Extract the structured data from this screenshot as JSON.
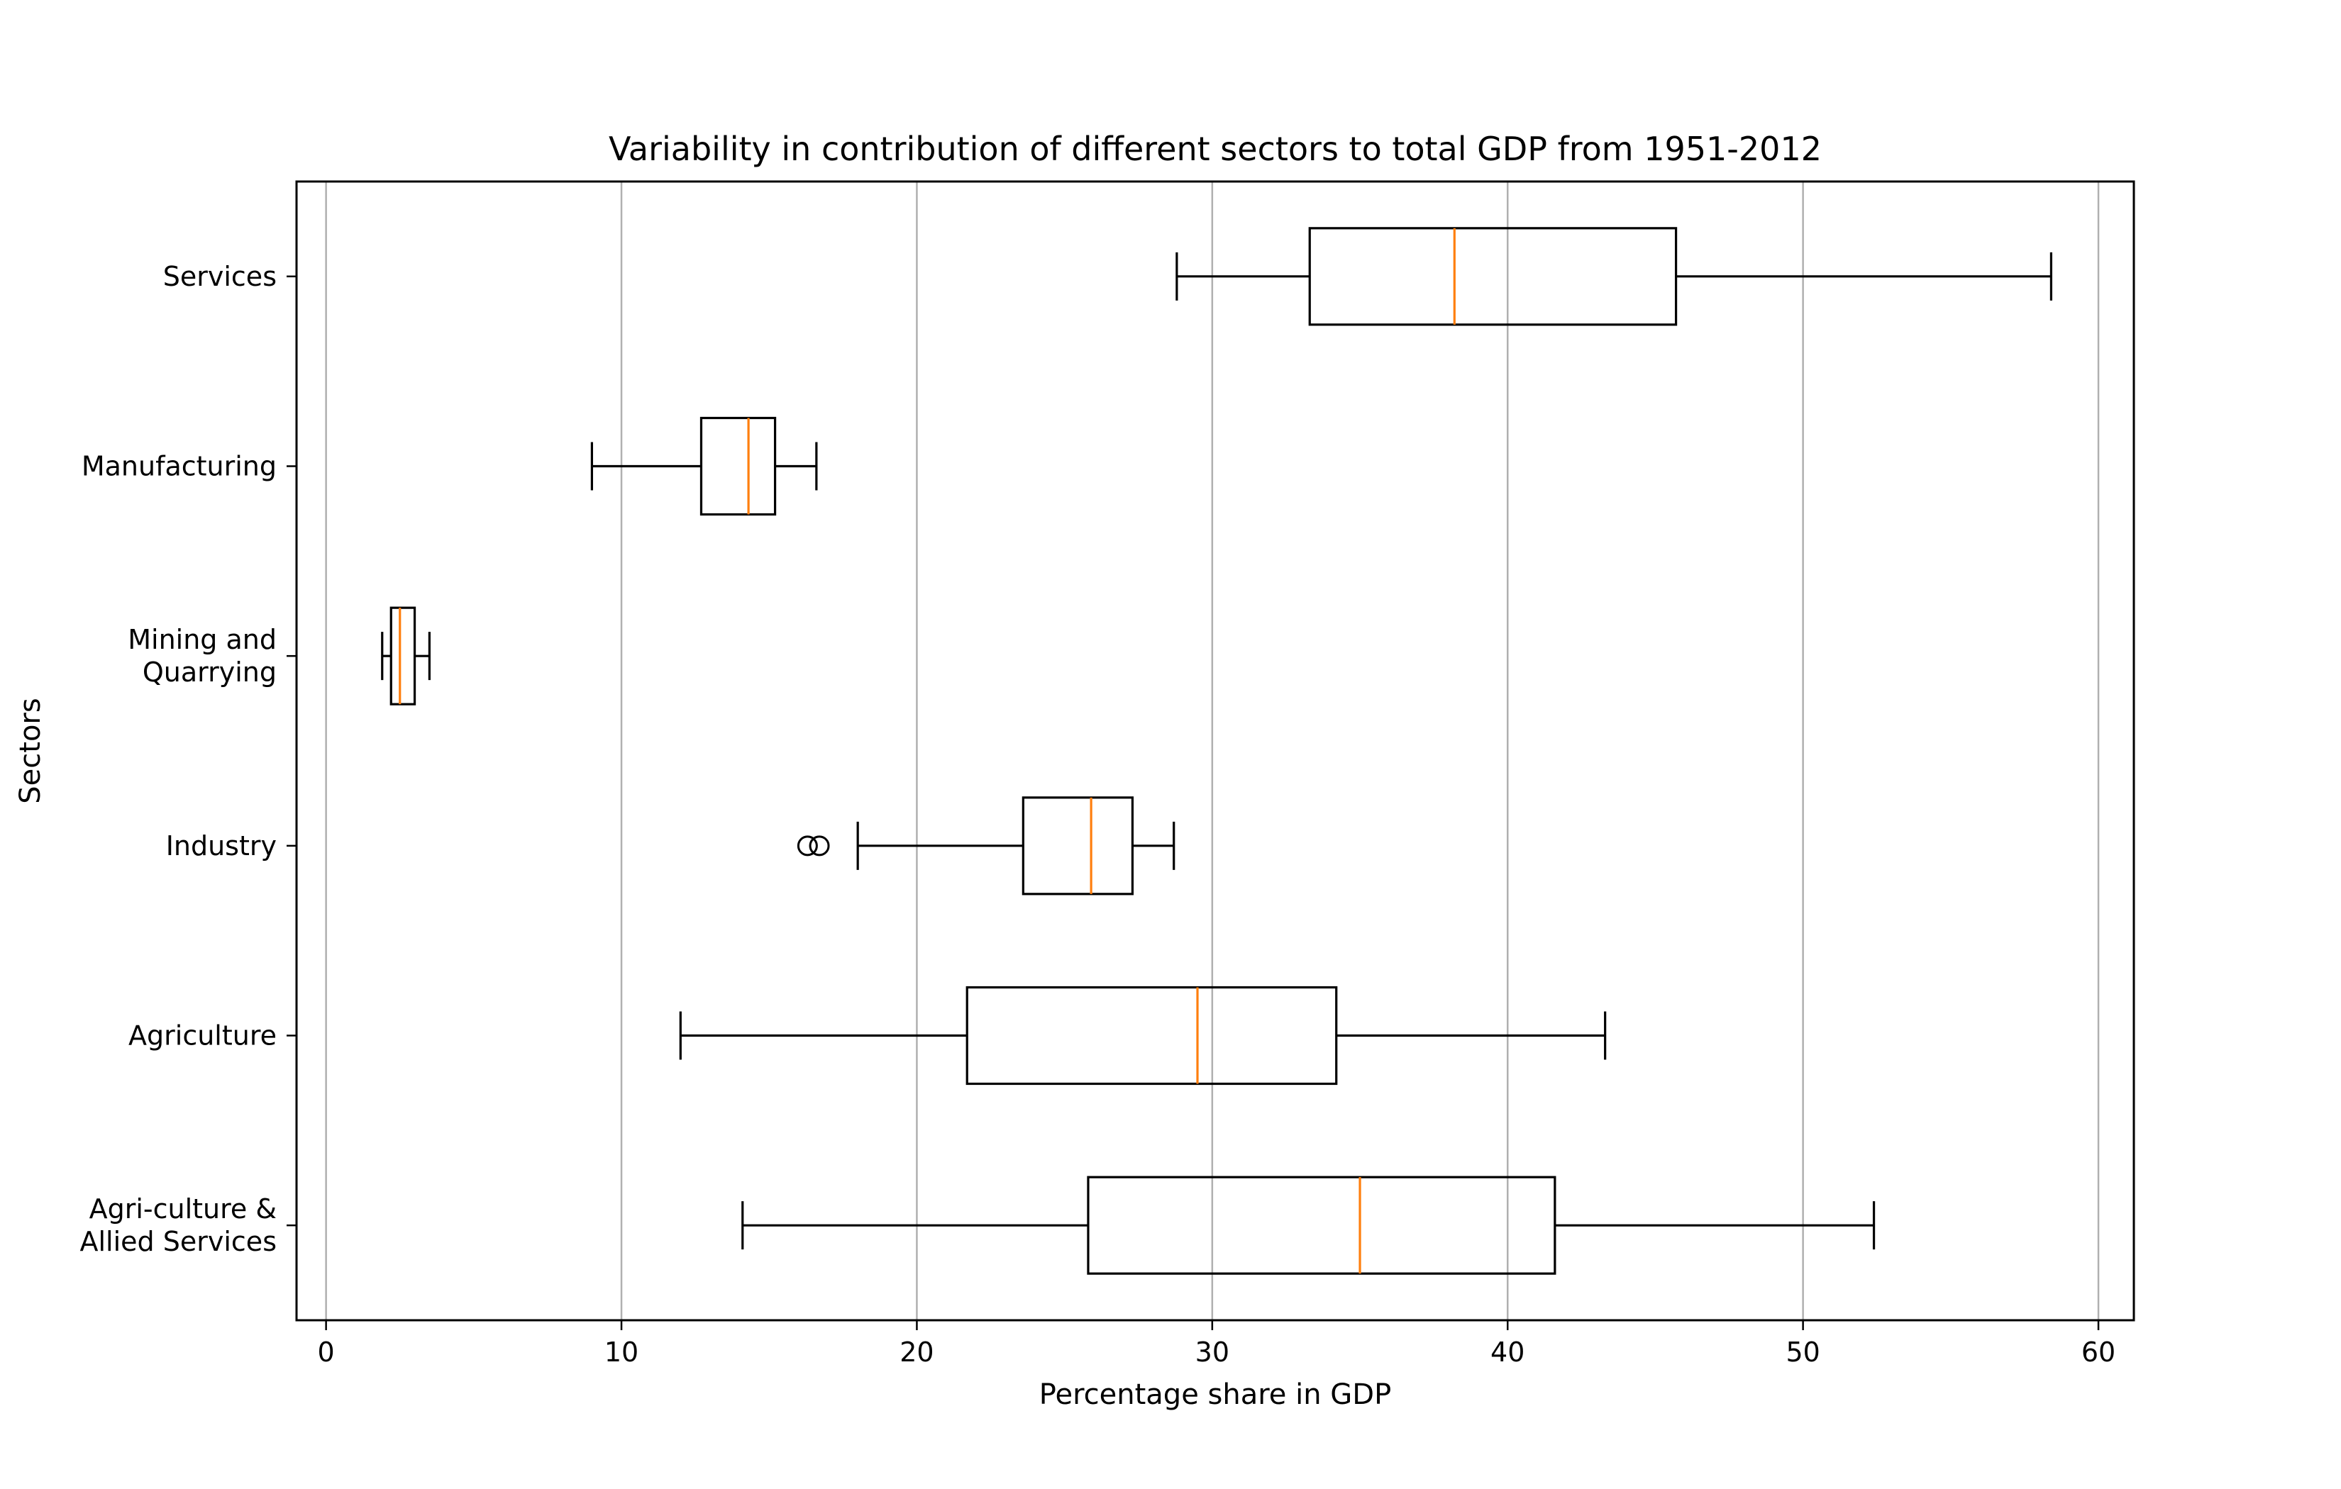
{
  "chart_data": {
    "type": "boxplot",
    "orientation": "horizontal",
    "title": "Variability in contribution of different sectors to total GDP from 1951-2012",
    "xlabel": "Percentage share in GDP",
    "ylabel": "Sectors",
    "xlim": [
      -1,
      61.2
    ],
    "xticks": [
      0,
      10,
      20,
      30,
      40,
      50,
      60
    ],
    "grid": "x-axis vertical lines",
    "colors": {
      "box": "#000000",
      "median": "#ff7f0e",
      "grid": "#b0b0b0"
    },
    "categories": [
      {
        "lines": [
          "Services"
        ]
      },
      {
        "lines": [
          "Manufacturing"
        ]
      },
      {
        "lines": [
          "Mining and",
          "Quarrying"
        ]
      },
      {
        "lines": [
          "Industry"
        ]
      },
      {
        "lines": [
          "Agriculture"
        ]
      },
      {
        "lines": [
          "Agri-culture &",
          "Allied Services"
        ]
      }
    ],
    "boxes": [
      {
        "whisker_low": 28.8,
        "q1": 33.3,
        "median": 38.2,
        "q3": 45.7,
        "whisker_high": 58.4,
        "outliers": []
      },
      {
        "whisker_low": 9.0,
        "q1": 12.7,
        "median": 14.3,
        "q3": 15.2,
        "whisker_high": 16.6,
        "outliers": []
      },
      {
        "whisker_low": 1.9,
        "q1": 2.2,
        "median": 2.5,
        "q3": 3.0,
        "whisker_high": 3.5,
        "outliers": []
      },
      {
        "whisker_low": 18.0,
        "q1": 23.6,
        "median": 25.9,
        "q3": 27.3,
        "whisker_high": 28.7,
        "outliers": [
          16.3,
          16.7
        ]
      },
      {
        "whisker_low": 12.0,
        "q1": 21.7,
        "median": 29.5,
        "q3": 34.2,
        "whisker_high": 43.3,
        "outliers": []
      },
      {
        "whisker_low": 14.1,
        "q1": 25.8,
        "median": 35.0,
        "q3": 41.6,
        "whisker_high": 52.4,
        "outliers": []
      }
    ]
  }
}
